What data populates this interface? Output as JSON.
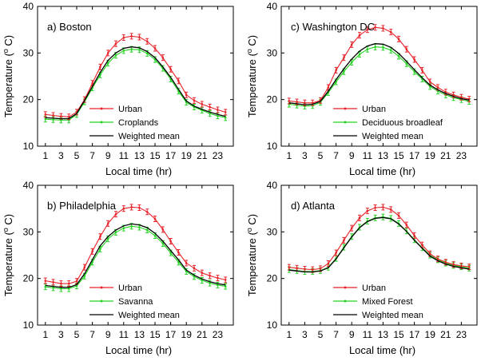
{
  "colors": {
    "urban": "#e8232a",
    "veg": "#22d322",
    "mean": "#000000"
  },
  "chart_data": [
    {
      "type": "line",
      "panel_id": "a",
      "title": "a) Boston",
      "xlabel": "Local time (hr)",
      "ylabel": "Temperature (o C)",
      "ylabel_main": "Temperature (",
      "ylabel_sup": "o",
      "ylabel_end": " C)",
      "xlim": [
        0,
        25
      ],
      "ylim": [
        10,
        40
      ],
      "xticks": [
        "1",
        "3",
        "5",
        "7",
        "9",
        "11",
        "13",
        "15",
        "17",
        "19",
        "21",
        "23"
      ],
      "yticks": [
        "10",
        "20",
        "30",
        "40"
      ],
      "x": [
        1,
        2,
        3,
        4,
        5,
        6,
        7,
        8,
        9,
        10,
        11,
        12,
        13,
        14,
        15,
        16,
        17,
        18,
        19,
        20,
        21,
        22,
        23,
        24
      ],
      "series": [
        {
          "name": "Urban",
          "color_key": "urban",
          "errorbars": true,
          "values": [
            16.8,
            16.6,
            16.4,
            16.3,
            17.3,
            20.0,
            23.5,
            27.0,
            30.0,
            32.0,
            33.3,
            33.6,
            33.4,
            32.5,
            31.0,
            29.0,
            26.5,
            24.0,
            21.0,
            19.8,
            19.0,
            18.4,
            17.8,
            17.3
          ]
        },
        {
          "name": "Croplands",
          "color_key": "veg",
          "errorbars": true,
          "values": [
            15.8,
            15.7,
            15.6,
            15.6,
            16.8,
            19.5,
            22.5,
            25.3,
            27.8,
            29.5,
            30.5,
            30.8,
            30.7,
            29.9,
            28.6,
            26.7,
            24.4,
            21.8,
            19.4,
            18.4,
            17.7,
            17.0,
            16.5,
            16.1
          ]
        },
        {
          "name": "Weighted mean",
          "color_key": "mean",
          "errorbars": false,
          "values": [
            16.1,
            16.0,
            15.9,
            15.9,
            17.0,
            19.8,
            22.8,
            25.8,
            28.4,
            30.0,
            31.0,
            31.3,
            31.1,
            30.3,
            29.0,
            27.0,
            24.8,
            22.2,
            19.7,
            18.6,
            17.9,
            17.3,
            16.8,
            16.4
          ]
        }
      ]
    },
    {
      "type": "line",
      "panel_id": "c",
      "title": "c) Washington DC",
      "xlabel": "Local time (hr)",
      "ylabel": "Temperature (o C)",
      "ylabel_main": "Temperature (",
      "ylabel_sup": "o",
      "ylabel_end": " C)",
      "xlim": [
        0,
        25
      ],
      "ylim": [
        10,
        40
      ],
      "xticks": [
        "1",
        "3",
        "5",
        "7",
        "9",
        "11",
        "13",
        "15",
        "17",
        "19",
        "21",
        "23"
      ],
      "yticks": [
        "10",
        "20",
        "30",
        "40"
      ],
      "x": [
        1,
        2,
        3,
        4,
        5,
        6,
        7,
        8,
        9,
        10,
        11,
        12,
        13,
        14,
        15,
        16,
        17,
        18,
        19,
        20,
        21,
        22,
        23,
        24
      ],
      "series": [
        {
          "name": "Urban",
          "color_key": "urban",
          "errorbars": true,
          "values": [
            19.7,
            19.5,
            19.3,
            19.3,
            19.8,
            22.6,
            26.3,
            29.0,
            31.8,
            33.8,
            35.0,
            35.5,
            35.3,
            34.5,
            33.0,
            30.8,
            28.6,
            26.3,
            23.8,
            22.6,
            21.6,
            21.0,
            20.5,
            20.1
          ]
        },
        {
          "name": "Deciduous broadleaf",
          "color_key": "veg",
          "errorbars": true,
          "values": [
            19.0,
            18.8,
            18.6,
            18.7,
            19.4,
            21.5,
            23.8,
            26.0,
            28.0,
            29.7,
            30.8,
            31.3,
            31.2,
            30.6,
            29.3,
            27.7,
            26.0,
            24.4,
            22.8,
            21.8,
            21.0,
            20.4,
            20.0,
            19.6
          ]
        },
        {
          "name": "Weighted mean",
          "color_key": "mean",
          "errorbars": false,
          "values": [
            19.3,
            19.1,
            18.9,
            19.0,
            19.6,
            21.8,
            24.3,
            26.6,
            28.7,
            30.4,
            31.5,
            32.0,
            31.9,
            31.2,
            29.9,
            28.2,
            26.4,
            24.7,
            23.1,
            22.1,
            21.3,
            20.7,
            20.2,
            19.9
          ]
        }
      ]
    },
    {
      "type": "line",
      "panel_id": "b",
      "title": "b) Philadelphia",
      "xlabel": "Local time (hr)",
      "ylabel": "Temperature (o C)",
      "ylabel_main": "Temperature (",
      "ylabel_sup": "o",
      "ylabel_end": " C)",
      "xlim": [
        0,
        25
      ],
      "ylim": [
        10,
        40
      ],
      "xticks": [
        "1",
        "3",
        "5",
        "7",
        "9",
        "11",
        "13",
        "15",
        "17",
        "19",
        "21",
        "23"
      ],
      "yticks": [
        "10",
        "20",
        "30",
        "40"
      ],
      "x": [
        1,
        2,
        3,
        4,
        5,
        6,
        7,
        8,
        9,
        10,
        11,
        12,
        13,
        14,
        15,
        16,
        17,
        18,
        19,
        20,
        21,
        22,
        23,
        24
      ],
      "series": [
        {
          "name": "Urban",
          "color_key": "urban",
          "errorbars": true,
          "values": [
            19.5,
            19.2,
            18.9,
            18.9,
            19.4,
            22.4,
            25.8,
            29.0,
            31.8,
            33.8,
            35.0,
            35.3,
            35.2,
            34.3,
            32.8,
            30.5,
            28.0,
            25.6,
            23.3,
            22.2,
            21.2,
            20.6,
            20.1,
            19.7
          ]
        },
        {
          "name": "Savanna",
          "color_key": "veg",
          "errorbars": true,
          "values": [
            18.2,
            18.0,
            17.8,
            17.8,
            18.4,
            20.5,
            23.5,
            26.3,
            28.5,
            29.9,
            30.8,
            31.2,
            31.0,
            30.4,
            29.2,
            27.5,
            25.5,
            23.5,
            21.5,
            20.4,
            19.6,
            19.0,
            18.6,
            18.3
          ]
        },
        {
          "name": "Weighted mean",
          "color_key": "mean",
          "errorbars": false,
          "values": [
            18.5,
            18.3,
            18.1,
            18.1,
            18.7,
            21.0,
            24.0,
            27.0,
            29.0,
            30.4,
            31.3,
            31.7,
            31.5,
            30.9,
            29.7,
            28.0,
            26.0,
            24.0,
            21.8,
            20.7,
            19.9,
            19.3,
            18.9,
            18.6
          ]
        }
      ]
    },
    {
      "type": "line",
      "panel_id": "d",
      "title": "d) Atlanta",
      "xlabel": "Local time (hr)",
      "ylabel": "Temperature (o C)",
      "ylabel_main": "Temperature (",
      "ylabel_sup": "o",
      "ylabel_end": " C)",
      "xlim": [
        0,
        25
      ],
      "ylim": [
        10,
        40
      ],
      "xticks": [
        "1",
        "3",
        "5",
        "7",
        "9",
        "11",
        "13",
        "15",
        "17",
        "19",
        "21",
        "23"
      ],
      "yticks": [
        "10",
        "20",
        "30",
        "40"
      ],
      "x": [
        1,
        2,
        3,
        4,
        5,
        6,
        7,
        8,
        9,
        10,
        11,
        12,
        13,
        14,
        15,
        16,
        17,
        18,
        19,
        20,
        21,
        22,
        23,
        24
      ],
      "series": [
        {
          "name": "Urban",
          "color_key": "urban",
          "errorbars": true,
          "values": [
            22.4,
            22.2,
            22.0,
            21.9,
            22.1,
            23.2,
            25.5,
            28.2,
            30.8,
            33.0,
            34.5,
            35.2,
            35.3,
            34.8,
            33.5,
            31.5,
            29.2,
            27.2,
            25.3,
            24.2,
            23.5,
            23.0,
            22.7,
            22.5
          ]
        },
        {
          "name": "Mixed Forest",
          "color_key": "veg",
          "errorbars": true,
          "values": [
            21.9,
            21.7,
            21.5,
            21.5,
            21.7,
            22.4,
            24.3,
            26.7,
            29.0,
            31.0,
            32.3,
            33.0,
            33.2,
            32.9,
            31.8,
            30.2,
            28.3,
            26.6,
            25.0,
            24.0,
            23.3,
            22.8,
            22.5,
            22.2
          ]
        },
        {
          "name": "Weighted mean",
          "color_key": "mean",
          "errorbars": false,
          "values": [
            21.8,
            21.6,
            21.4,
            21.4,
            21.6,
            22.3,
            24.2,
            26.6,
            28.9,
            30.9,
            32.2,
            32.9,
            33.1,
            32.8,
            31.7,
            30.1,
            28.2,
            26.5,
            24.8,
            23.8,
            23.1,
            22.6,
            22.3,
            22.0
          ]
        }
      ]
    }
  ]
}
